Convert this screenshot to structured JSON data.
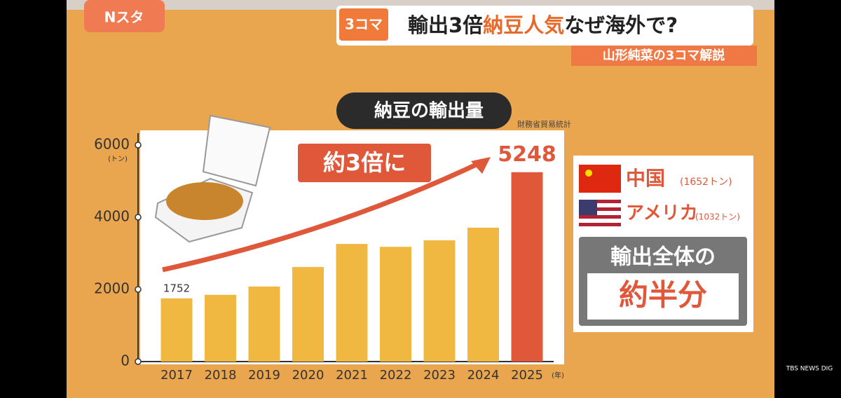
{
  "broadcast": {
    "program": "Nスタ",
    "badge": "3コマ",
    "headline": [
      "輸出3倍",
      "納豆人気",
      "なぜ海外で?"
    ],
    "subheadline": "山形純菜の3コマ解説",
    "logo": "TBS NEWS DIG"
  },
  "chart_data": {
    "type": "bar",
    "title": "納豆の輸出量",
    "source": "財務省貿易統計",
    "y_unit": "(トン)",
    "x_unit": "(年)",
    "categories": [
      "2017",
      "2018",
      "2019",
      "2020",
      "2021",
      "2022",
      "2023",
      "2024",
      "2025"
    ],
    "values": [
      1752,
      1850,
      2080,
      2620,
      3260,
      3180,
      3360,
      3710,
      5248
    ],
    "value_labels": [
      "1752",
      null,
      null,
      null,
      null,
      null,
      null,
      null,
      "5248"
    ],
    "colors": [
      "#f0b840",
      "#f0b840",
      "#f0b840",
      "#f0b840",
      "#f0b840",
      "#f0b840",
      "#f0b840",
      "#f0b840",
      "#e0583a"
    ],
    "ylim": [
      0,
      6000
    ],
    "yticks": [
      0,
      2000,
      4000,
      6000
    ],
    "annotation": "約3倍に"
  },
  "side_panel": {
    "items": [
      {
        "country": "中国",
        "amount": "(1652トン)"
      },
      {
        "country": "アメリカ",
        "amount": "(1032トン)"
      }
    ],
    "note_line1": "輸出全体の",
    "note_line2": "約半分"
  }
}
